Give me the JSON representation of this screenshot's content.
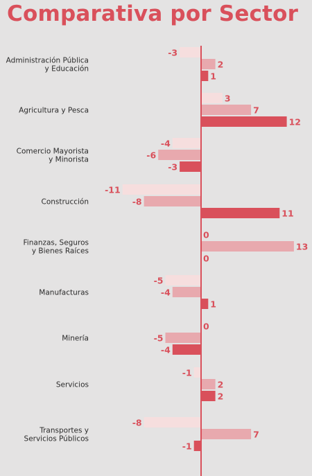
{
  "title": "Comparativa por Sector",
  "colors": {
    "background": "#e4e3e3",
    "accent": "#d9505b",
    "series": [
      "#f6dede",
      "#e8a9ae",
      "#d9505b"
    ]
  },
  "chart_data": {
    "type": "bar",
    "orientation": "horizontal",
    "title": "Comparativa por Sector",
    "categories": [
      [
        "Administración Pública",
        "y Educación"
      ],
      [
        "Agricultura y Pesca"
      ],
      [
        "Comercio Mayorista",
        "y Minorista"
      ],
      [
        "Construcción"
      ],
      [
        "Finanzas, Seguros",
        "y Bienes Raíces"
      ],
      [
        "Manufacturas"
      ],
      [
        "Minería"
      ],
      [
        "Servicios"
      ],
      [
        "Transportes y",
        "Servicios Públicos"
      ]
    ],
    "series": [
      {
        "values": [
          -3,
          3,
          -4,
          -11,
          0,
          -5,
          0,
          -1,
          -8
        ],
        "color": "#f6dede"
      },
      {
        "values": [
          2,
          7,
          -6,
          -8,
          13,
          -4,
          -5,
          2,
          7
        ],
        "color": "#e8a9ae"
      },
      {
        "values": [
          1,
          12,
          -3,
          11,
          0,
          1,
          -4,
          2,
          -1
        ],
        "color": "#d9505b"
      }
    ],
    "xlim": [
      -14,
      15
    ],
    "grid": false,
    "legend": "none"
  }
}
